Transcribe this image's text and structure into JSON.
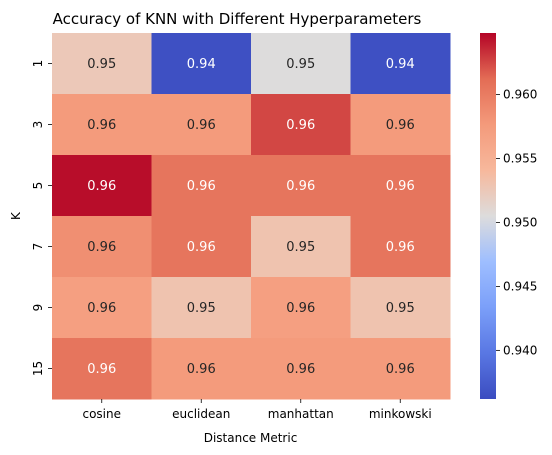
{
  "chart_data": {
    "type": "heatmap",
    "title": "Accuracy of KNN with Different Hyperparameters",
    "xlabel": "Distance Metric",
    "ylabel": "K",
    "x_categories": [
      "cosine",
      "euclidean",
      "manhattan",
      "minkowski"
    ],
    "y_categories": [
      "1",
      "3",
      "5",
      "7",
      "9",
      "15"
    ],
    "values": [
      [
        0.9525,
        0.9365,
        0.9505,
        0.9365
      ],
      [
        0.9575,
        0.9575,
        0.9625,
        0.9575
      ],
      [
        0.9645,
        0.9605,
        0.9605,
        0.9605
      ],
      [
        0.9585,
        0.9605,
        0.953,
        0.9605
      ],
      [
        0.957,
        0.953,
        0.957,
        0.953
      ],
      [
        0.9605,
        0.9575,
        0.9575,
        0.9575
      ]
    ],
    "annotations": [
      [
        "0.95",
        "0.94",
        "0.95",
        "0.94"
      ],
      [
        "0.96",
        "0.96",
        "0.96",
        "0.96"
      ],
      [
        "0.96",
        "0.96",
        "0.96",
        "0.96"
      ],
      [
        "0.96",
        "0.96",
        "0.95",
        "0.96"
      ],
      [
        "0.96",
        "0.95",
        "0.96",
        "0.95"
      ],
      [
        "0.96",
        "0.96",
        "0.96",
        "0.96"
      ]
    ],
    "colormap": "coolwarm",
    "vmin": 0.9362,
    "vmax": 0.9648,
    "colorbar_ticks": [
      0.94,
      0.945,
      0.95,
      0.955,
      0.96
    ],
    "colorbar_tick_labels": [
      "0.940",
      "0.945",
      "0.950",
      "0.955",
      "0.960"
    ]
  }
}
